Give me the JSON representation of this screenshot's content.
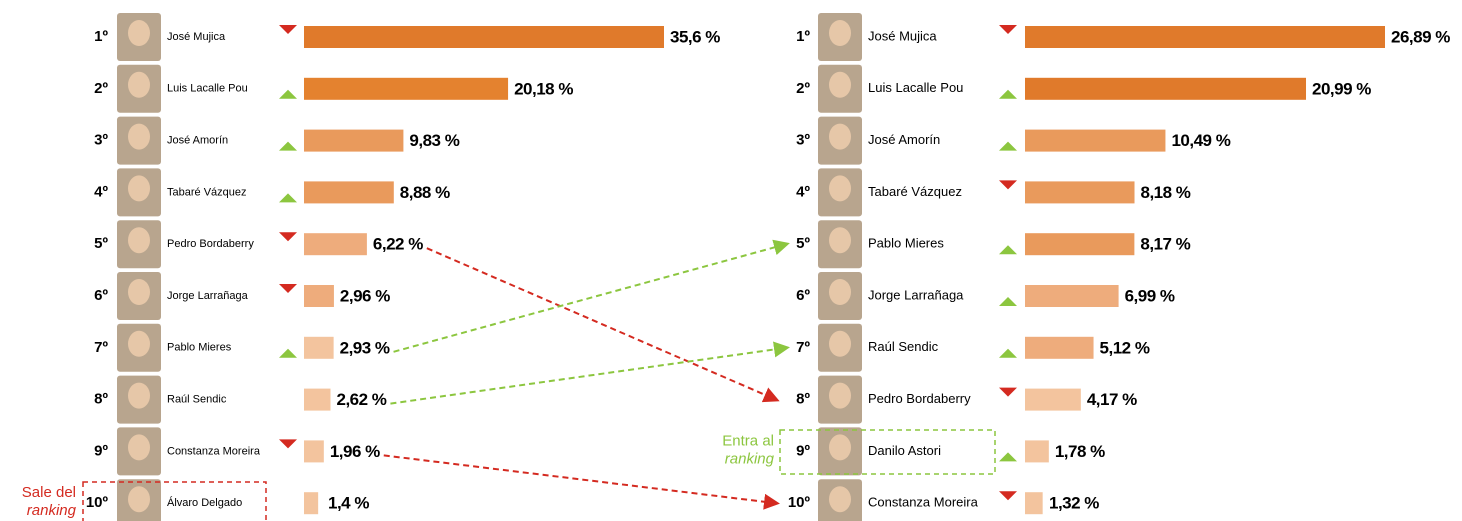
{
  "chart_data": [
    {
      "type": "bar",
      "ranks": [
        "1º",
        "2º",
        "3º",
        "4º",
        "5º",
        "6º",
        "7º",
        "8º",
        "9º",
        "10º"
      ],
      "categories": [
        "José Mujica",
        "Luis Lacalle Pou",
        "José Amorín",
        "Tabaré Vázquez",
        "Pedro Bordaberry",
        "Jorge Larrañaga",
        "Pablo Mieres",
        "Raúl Sendic",
        "Constanza Moreira",
        "Álvaro Delgado"
      ],
      "trends": [
        "down",
        "up",
        "up",
        "up",
        "down",
        "down",
        "up",
        null,
        "down",
        null
      ],
      "values": [
        35.6,
        20.18,
        9.83,
        8.88,
        6.22,
        2.96,
        2.93,
        2.62,
        1.96,
        1.4
      ],
      "value_labels": [
        "35,6 %",
        "20,18 %",
        "9,83 %",
        "8,88 %",
        "6,22 %",
        "2,96 %",
        "2,93 %",
        "2,62 %",
        "1,96 %",
        "1,4 %"
      ],
      "colors": [
        "#e07a2b",
        "#e4822f",
        "#e99a5c",
        "#e99a5c",
        "#eeac7c",
        "#eeac7c",
        "#f3c49e",
        "#f3c49e",
        "#f3c49e",
        "#f3c49e"
      ],
      "annotation": [
        "Sale del",
        "ranking"
      ]
    },
    {
      "type": "bar",
      "ranks": [
        "1º",
        "2º",
        "3º",
        "4º",
        "5º",
        "6º",
        "7º",
        "8º",
        "9º",
        "10º"
      ],
      "categories": [
        "José Mujica",
        "Luis Lacalle Pou",
        "José Amorín",
        "Tabaré Vázquez",
        "Pablo Mieres",
        "Jorge Larrañaga",
        "Raúl Sendic",
        "Pedro Bordaberry",
        "Danilo Astori",
        "Constanza Moreira"
      ],
      "trends": [
        "down",
        "up",
        "up",
        "down",
        "up",
        "up",
        "up",
        "down",
        "up",
        "down"
      ],
      "values": [
        26.89,
        20.99,
        10.49,
        8.18,
        8.17,
        6.99,
        5.12,
        4.17,
        1.78,
        1.32
      ],
      "value_labels": [
        "26,89 %",
        "20,99 %",
        "10,49 %",
        "8,18 %",
        "8,17 %",
        "6,99 %",
        "5,12 %",
        "4,17 %",
        "1,78 %",
        "1,32 %"
      ],
      "colors": [
        "#e07a2b",
        "#e07a2b",
        "#e99a5c",
        "#e99a5c",
        "#e99a5c",
        "#eeac7c",
        "#eeac7c",
        "#f3c49e",
        "#f3c49e",
        "#f3c49e"
      ],
      "annotation": [
        "Entra al",
        "ranking"
      ]
    }
  ]
}
